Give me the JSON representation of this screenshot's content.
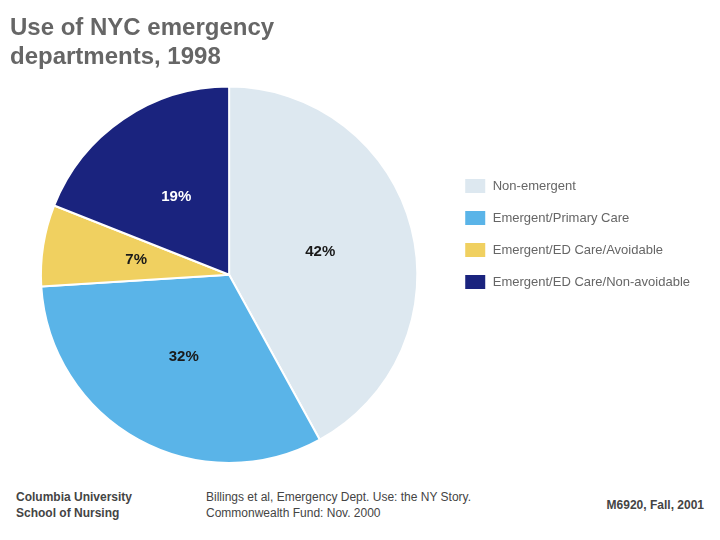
{
  "chart_data": {
    "type": "pie",
    "title": [
      "Use of NYC emergency",
      "departments, 1998"
    ],
    "categories": [
      "Non-emergent",
      "Emergent/Primary Care",
      "Emergent/ED Care/Avoidable",
      "Emergent/ED Care/Non-avoidable"
    ],
    "values": [
      42,
      32,
      7,
      19
    ],
    "value_labels": [
      "42%",
      "32%",
      "7%",
      "19%"
    ],
    "data_labels": true,
    "colors": [
      "#dde8f0",
      "#5ab4e8",
      "#f0d060",
      "#1a237e"
    ],
    "legend": "right",
    "annotations": [
      "Columbia University",
      "School of Nursing",
      "Billings et al, Emergency Dept. Use: the NY Story.",
      "Commonwealth Fund: Nov. 2000",
      "M6920, Fall, 2001"
    ]
  }
}
